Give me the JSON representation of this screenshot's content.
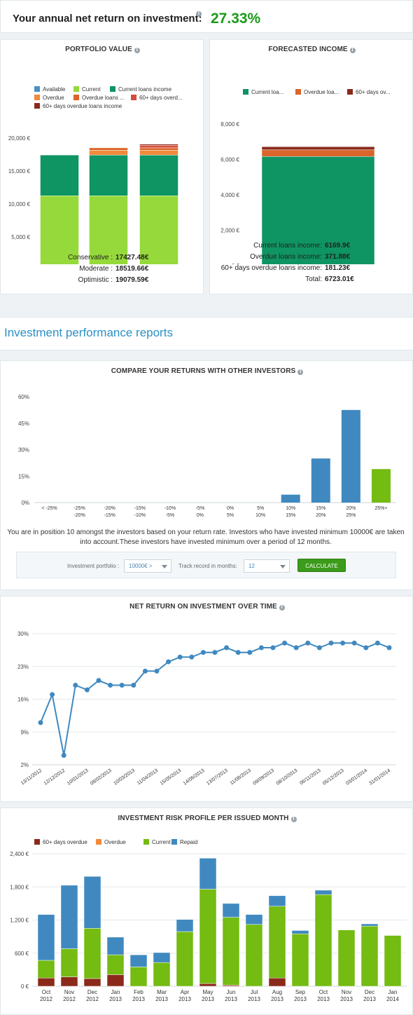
{
  "header": {
    "label": "Your annual net return on investment:",
    "value": "27.33%"
  },
  "portfolio": {
    "title": "PORTFOLIO VALUE",
    "summary": [
      {
        "label": "Conservative :",
        "value": "17427.48€"
      },
      {
        "label": "Moderate :",
        "value": "18519.66€"
      },
      {
        "label": "Optimistic :",
        "value": "19079.59€"
      }
    ]
  },
  "forecast": {
    "title": "FORECASTED INCOME",
    "summary": [
      {
        "label": "Current loans income:",
        "value": "6169.9€"
      },
      {
        "label": "Overdue loans income:",
        "value": "371.88€"
      },
      {
        "label": "60+ days overdue loans income:",
        "value": "181.23€"
      },
      {
        "label": "Total:",
        "value": "6723.01€"
      }
    ]
  },
  "reports_title": "Investment performance reports",
  "compare": {
    "title": "COMPARE YOUR RETURNS WITH OTHER INVESTORS",
    "note": "You are in position 10 amongst the investors based on your return rate. Investors who have invested minimum 10000€ are taken into account.These investors have invested minimum over a period of 12 months.",
    "form": {
      "portfolio_label": "Investment portfolio :",
      "portfolio_value": "10000€ >",
      "track_label": "Track record in months:",
      "track_value": "12",
      "button": "CALCULATE"
    }
  },
  "net_return": {
    "title": "NET RETURN ON INVESTMENT OVER TIME"
  },
  "risk": {
    "title": "INVESTMENT RISK PROFILE PER ISSUED MONTH"
  },
  "colors": {
    "available": "#4a90c8",
    "current": "#96d93a",
    "current_loans": "#0f9463",
    "overdue": "#f18a3a",
    "overdue_loans": "#d9652a",
    "overdue60_red": "#d64b3b",
    "overdue60": "#8b2a1b",
    "blue_bar": "#4089c0",
    "green_bar": "#74bb12",
    "line": "#4089c0"
  },
  "chart_data": [
    {
      "type": "bar",
      "title": "PORTFOLIO VALUE",
      "categories": [
        "Conservative",
        "Moderate",
        "Optimistic"
      ],
      "ylim": [
        0,
        20000
      ],
      "yticks": [
        "0 €",
        "5,000 €",
        "10,000 €",
        "15,000 €",
        "20,000 €"
      ],
      "legend": [
        "Available",
        "Current",
        "Current loans income",
        "Overdue",
        "Overdue loans ...",
        "60+ days overd...",
        "60+ days overdue loans income"
      ],
      "legend_position": "top-left",
      "series": [
        {
          "name": "Available",
          "color": "#4a90c8",
          "values": [
            0,
            0,
            0
          ]
        },
        {
          "name": "Current",
          "color": "#96d93a",
          "values": [
            11250,
            11250,
            11250
          ]
        },
        {
          "name": "Current loans income",
          "color": "#0f9463",
          "values": [
            6180,
            6180,
            6180
          ]
        },
        {
          "name": "Overdue",
          "color": "#f18a3a",
          "values": [
            0,
            720,
            720
          ]
        },
        {
          "name": "Overdue loans ...",
          "color": "#d9652a",
          "values": [
            0,
            370,
            370
          ]
        },
        {
          "name": "60+ days overd...",
          "color": "#d64b3b",
          "values": [
            0,
            0,
            380
          ]
        },
        {
          "name": "60+ days overdue loans income",
          "color": "#8b2a1b",
          "values": [
            0,
            0,
            180
          ]
        }
      ]
    },
    {
      "type": "bar",
      "title": "FORECASTED INCOME",
      "categories": [
        ""
      ],
      "ylim": [
        0,
        8000
      ],
      "yticks": [
        "0 €",
        "2,000 €",
        "4,000 €",
        "6,000 €",
        "8,000 €"
      ],
      "legend": [
        "Current loa...",
        "Overdue loa...",
        "60+ days ov..."
      ],
      "legend_position": "top",
      "series": [
        {
          "name": "Current loa...",
          "color": "#0f9463",
          "values": [
            6169.9
          ]
        },
        {
          "name": "Overdue loa...",
          "color": "#d9652a",
          "values": [
            371.88
          ]
        },
        {
          "name": "60+ days ov...",
          "color": "#8b2a1b",
          "values": [
            181.23
          ]
        }
      ]
    },
    {
      "type": "bar",
      "title": "COMPARE YOUR RETURNS WITH OTHER INVESTORS",
      "categories": [
        [
          "< -25%"
        ],
        [
          "-25%",
          "-20%"
        ],
        [
          "-20%",
          "-15%"
        ],
        [
          "-15%",
          "-10%"
        ],
        [
          "-10%",
          "-5%"
        ],
        [
          "-5%",
          "0%"
        ],
        [
          "0%",
          "5%"
        ],
        [
          "5%",
          "10%"
        ],
        [
          "10%",
          "15%"
        ],
        [
          "15%",
          "20%"
        ],
        [
          "20%",
          "25%"
        ],
        [
          "25%+"
        ]
      ],
      "values": [
        0,
        0,
        0,
        0,
        0,
        0,
        0,
        0,
        4.5,
        25,
        52.5,
        19
      ],
      "colors": [
        "#4089c0",
        "#4089c0",
        "#4089c0",
        "#4089c0",
        "#4089c0",
        "#4089c0",
        "#4089c0",
        "#4089c0",
        "#4089c0",
        "#4089c0",
        "#4089c0",
        "#74bb12"
      ],
      "ylim": [
        0,
        60
      ],
      "yticks": [
        "0%",
        "15%",
        "30%",
        "45%",
        "60%"
      ]
    },
    {
      "type": "line",
      "title": "NET RETURN ON INVESTMENT OVER TIME",
      "x_labels": [
        "13/11/2012",
        "12/12/2012",
        "10/01/2013",
        "08/02/2013",
        "10/03/2013",
        "11/04/2013",
        "15/05/2013",
        "14/06/2013",
        "13/07/2013",
        "11/08/2013",
        "09/09/2013",
        "08/10/2013",
        "06/11/2013",
        "05/12/2013",
        "03/01/2014",
        "31/01/2014"
      ],
      "values": [
        11,
        17,
        4,
        19,
        18,
        20,
        19,
        19,
        19,
        22,
        22,
        24,
        25,
        25,
        26,
        26,
        27,
        26,
        26,
        27,
        27,
        28,
        27,
        28,
        27,
        28,
        28,
        28,
        27,
        28,
        27
      ],
      "ylim": [
        2,
        30
      ],
      "yticks": [
        "2%",
        "9%",
        "16%",
        "23%",
        "30%"
      ]
    },
    {
      "type": "bar",
      "title": "INVESTMENT RISK PROFILE PER ISSUED MONTH",
      "categories": [
        [
          "Oct",
          "2012"
        ],
        [
          "Nov",
          "2012"
        ],
        [
          "Dec",
          "2012"
        ],
        [
          "Jan",
          "2013"
        ],
        [
          "Feb",
          "2013"
        ],
        [
          "Mar",
          "2013"
        ],
        [
          "Apr",
          "2013"
        ],
        [
          "May",
          "2013"
        ],
        [
          "Jun",
          "2013"
        ],
        [
          "Jul",
          "2013"
        ],
        [
          "Aug",
          "2013"
        ],
        [
          "Sep",
          "2013"
        ],
        [
          "Oct",
          "2013"
        ],
        [
          "Nov",
          "2013"
        ],
        [
          "Dec",
          "2013"
        ],
        [
          "Jan",
          "2014"
        ]
      ],
      "ylim": [
        0,
        2400
      ],
      "yticks": [
        "0 €",
        "600 €",
        "1,200 €",
        "1,800 €",
        "2,400 €"
      ],
      "legend": [
        "60+ days overdue",
        "Overdue",
        "Current",
        "Repaid"
      ],
      "legend_position": "top-left",
      "series": [
        {
          "name": "60+ days overdue",
          "color": "#8b2a1b",
          "values": [
            150,
            170,
            140,
            210,
            0,
            0,
            0,
            50,
            20,
            0,
            150,
            0,
            0,
            0,
            0,
            0
          ]
        },
        {
          "name": "Overdue",
          "color": "#f18a3a",
          "values": [
            0,
            0,
            0,
            0,
            0,
            0,
            0,
            0,
            0,
            0,
            0,
            0,
            0,
            0,
            0,
            0
          ]
        },
        {
          "name": "Current",
          "color": "#74bb12",
          "values": [
            320,
            510,
            910,
            360,
            350,
            430,
            990,
            1710,
            1230,
            1120,
            1300,
            950,
            1660,
            1020,
            1090,
            920
          ]
        },
        {
          "name": "Repaid",
          "color": "#4089c0",
          "values": [
            830,
            1150,
            940,
            320,
            220,
            180,
            220,
            560,
            250,
            180,
            190,
            60,
            80,
            0,
            40,
            0
          ]
        }
      ]
    }
  ]
}
